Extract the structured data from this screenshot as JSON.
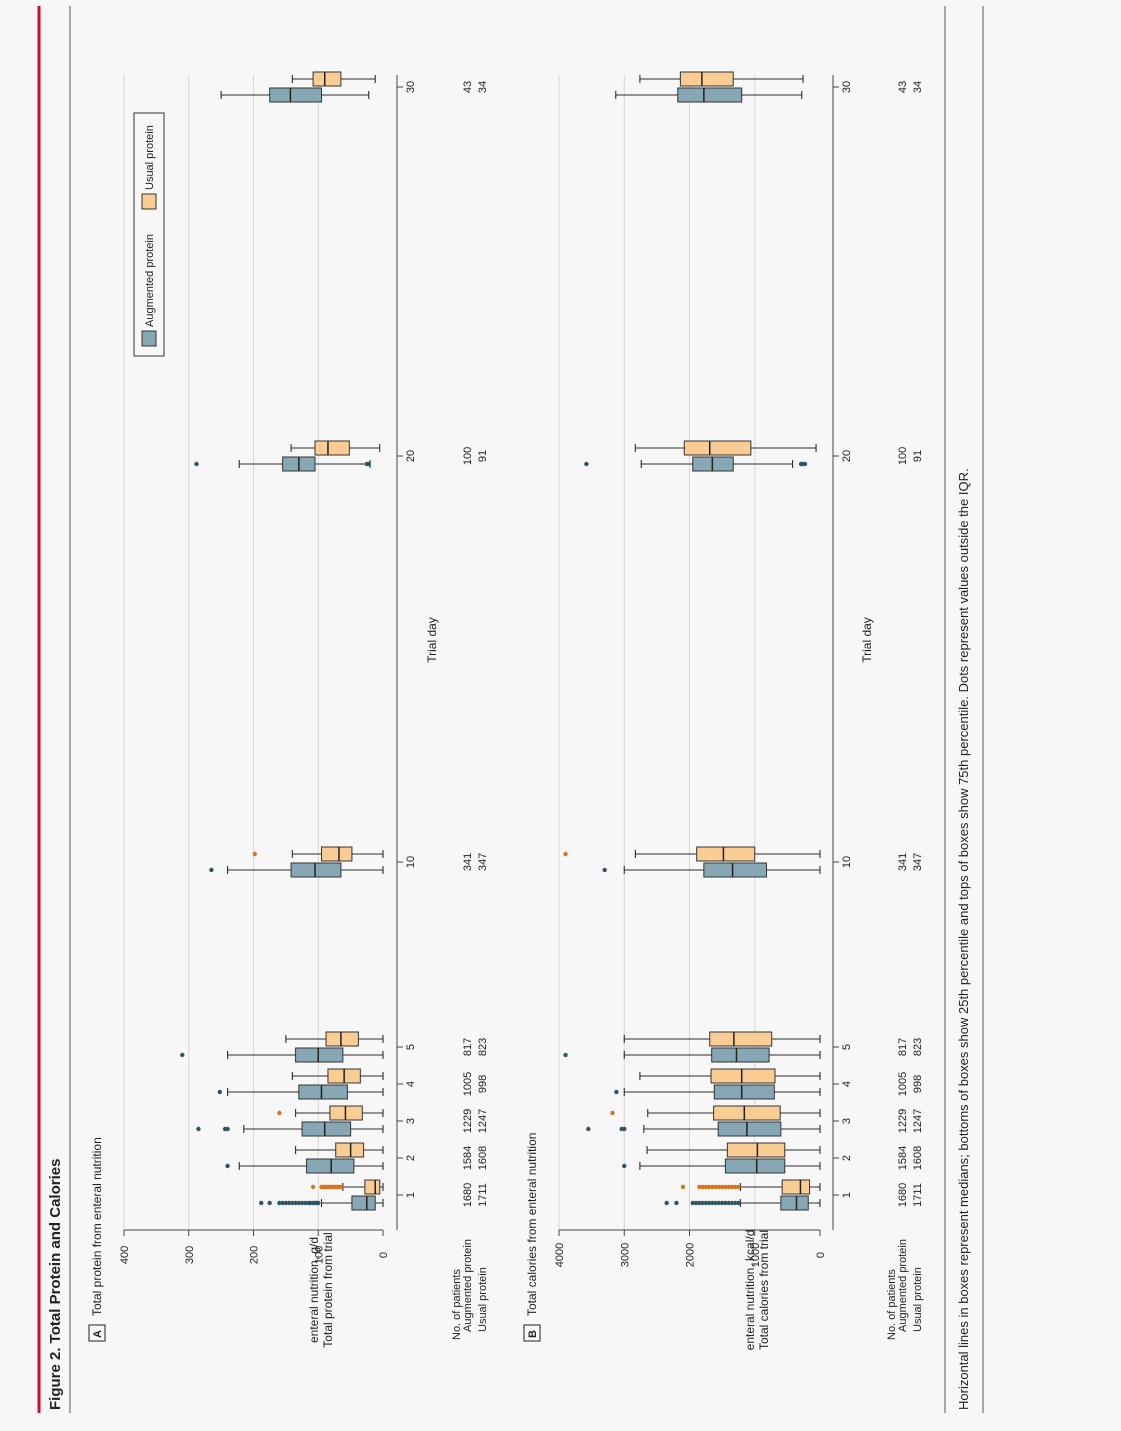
{
  "figure": {
    "title": "Figure 2. Total Protein and Calories",
    "caption": "Horizontal lines in boxes represent medians; bottoms of boxes show 25th percentile and tops of boxes show 75th percentile. Dots represent values outside the IQR.",
    "accent_color": "#c8102e"
  },
  "legend": {
    "items": [
      {
        "label": "Augmented protein",
        "color": "#87a7b5"
      },
      {
        "label": "Usual protein",
        "color": "#f8cc93"
      }
    ]
  },
  "patients": {
    "heading": "No. of patients",
    "rows": [
      {
        "label": "Augmented protein",
        "counts": [
          "1680",
          "1584",
          "1229",
          "1005",
          "817",
          "341",
          "100",
          "43"
        ]
      },
      {
        "label": "Usual protein",
        "counts": [
          "1711",
          "1608",
          "1247",
          "998",
          "823",
          "347",
          "91",
          "34"
        ]
      }
    ]
  },
  "chart_data": [
    {
      "panel": "A",
      "type": "box",
      "title": "Total protein from enteral nutrition",
      "ylabel": "Total protein from trial enteral nutrition, g/d",
      "xlabel": "Trial day",
      "ylim": [
        0,
        400
      ],
      "yticks": [
        0,
        100,
        200,
        300,
        400
      ],
      "days": [
        1,
        2,
        3,
        4,
        5,
        10,
        20,
        30
      ],
      "day_labels": [
        "1",
        "2",
        "3",
        "4",
        "5",
        "10",
        "20",
        "30"
      ],
      "series": [
        {
          "name": "Augmented protein",
          "boxes": [
            {
              "min": 0,
              "q1": 12,
              "median": 25,
              "q3": 48,
              "max": 95,
              "outliers": [
                100,
                102,
                105,
                108,
                112,
                115,
                120,
                125,
                130,
                135,
                140,
                145,
                150,
                155,
                160,
                175,
                188
              ]
            },
            {
              "min": 0,
              "q1": 45,
              "median": 80,
              "q3": 118,
              "max": 222,
              "outliers": [
                240
              ]
            },
            {
              "min": 0,
              "q1": 50,
              "median": 90,
              "q3": 125,
              "max": 215,
              "outliers": [
                240,
                244,
                285
              ]
            },
            {
              "min": 0,
              "q1": 55,
              "median": 95,
              "q3": 130,
              "max": 240,
              "outliers": [
                252
              ]
            },
            {
              "min": 0,
              "q1": 62,
              "median": 100,
              "q3": 135,
              "max": 240,
              "outliers": [
                310
              ]
            },
            {
              "min": 0,
              "q1": 65,
              "median": 105,
              "q3": 142,
              "max": 240,
              "outliers": [
                265
              ]
            },
            {
              "min": 20,
              "q1": 105,
              "median": 130,
              "q3": 155,
              "max": 222,
              "outliers": [
                22,
                25,
                288
              ]
            },
            {
              "min": 22,
              "q1": 95,
              "median": 143,
              "q3": 175,
              "max": 250,
              "outliers": []
            }
          ]
        },
        {
          "name": "Usual protein",
          "boxes": [
            {
              "min": 0,
              "q1": 5,
              "median": 12,
              "q3": 28,
              "max": 62,
              "outliers": [
                65,
                68,
                70,
                72,
                75,
                78,
                80,
                82,
                85,
                88,
                90,
                92,
                95,
                108
              ]
            },
            {
              "min": 0,
              "q1": 30,
              "median": 50,
              "q3": 73,
              "max": 135,
              "outliers": []
            },
            {
              "min": 0,
              "q1": 32,
              "median": 58,
              "q3": 82,
              "max": 135,
              "outliers": [
                160
              ]
            },
            {
              "min": 0,
              "q1": 35,
              "median": 60,
              "q3": 85,
              "max": 140,
              "outliers": []
            },
            {
              "min": 0,
              "q1": 38,
              "median": 65,
              "q3": 88,
              "max": 150,
              "outliers": []
            },
            {
              "min": 0,
              "q1": 48,
              "median": 68,
              "q3": 95,
              "max": 140,
              "outliers": [
                198
              ]
            },
            {
              "min": 5,
              "q1": 52,
              "median": 85,
              "q3": 105,
              "max": 142,
              "outliers": []
            },
            {
              "min": 12,
              "q1": 65,
              "median": 90,
              "q3": 108,
              "max": 140,
              "outliers": []
            }
          ]
        }
      ]
    },
    {
      "panel": "B",
      "type": "box",
      "title": "Total calories from enteral nutrition",
      "ylabel": "Total calories from trial enteral nutrition, kcal/d",
      "xlabel": "Trial day",
      "ylim": [
        0,
        4000
      ],
      "yticks": [
        0,
        1000,
        2000,
        3000,
        4000
      ],
      "days": [
        1,
        2,
        3,
        4,
        5,
        10,
        20,
        30
      ],
      "day_labels": [
        "1",
        "2",
        "3",
        "4",
        "5",
        "10",
        "20",
        "30"
      ],
      "series": [
        {
          "name": "Augmented protein",
          "boxes": [
            {
              "min": 0,
              "q1": 180,
              "median": 360,
              "q3": 600,
              "max": 1220,
              "outliers": [
                1250,
                1300,
                1350,
                1400,
                1450,
                1500,
                1550,
                1600,
                1650,
                1700,
                1750,
                1800,
                1850,
                1900,
                1950,
                2200,
                2350
              ]
            },
            {
              "min": 0,
              "q1": 540,
              "median": 970,
              "q3": 1450,
              "max": 2760,
              "outliers": [
                3000
              ]
            },
            {
              "min": 0,
              "q1": 600,
              "median": 1120,
              "q3": 1560,
              "max": 2700,
              "outliers": [
                3000,
                3040,
                3550
              ]
            },
            {
              "min": 0,
              "q1": 700,
              "median": 1200,
              "q3": 1620,
              "max": 3000,
              "outliers": [
                3120
              ]
            },
            {
              "min": 0,
              "q1": 780,
              "median": 1280,
              "q3": 1660,
              "max": 3000,
              "outliers": [
                3900
              ]
            },
            {
              "min": 0,
              "q1": 820,
              "median": 1340,
              "q3": 1780,
              "max": 3000,
              "outliers": [
                3300
              ]
            },
            {
              "min": 420,
              "q1": 1330,
              "median": 1650,
              "q3": 1950,
              "max": 2740,
              "outliers": [
                230,
                260,
                290,
                3580
              ]
            },
            {
              "min": 280,
              "q1": 1200,
              "median": 1780,
              "q3": 2180,
              "max": 3130,
              "outliers": []
            }
          ]
        },
        {
          "name": "Usual protein",
          "boxes": [
            {
              "min": 0,
              "q1": 160,
              "median": 300,
              "q3": 580,
              "max": 1220,
              "outliers": [
                1250,
                1300,
                1350,
                1400,
                1450,
                1500,
                1550,
                1600,
                1650,
                1700,
                1750,
                1800,
                1850,
                2100
              ]
            },
            {
              "min": 0,
              "q1": 540,
              "median": 960,
              "q3": 1420,
              "max": 2650,
              "outliers": []
            },
            {
              "min": 0,
              "q1": 610,
              "median": 1160,
              "q3": 1630,
              "max": 2640,
              "outliers": [
                3180
              ]
            },
            {
              "min": 0,
              "q1": 690,
              "median": 1200,
              "q3": 1670,
              "max": 2760,
              "outliers": []
            },
            {
              "min": 0,
              "q1": 740,
              "median": 1320,
              "q3": 1690,
              "max": 3000,
              "outliers": []
            },
            {
              "min": 0,
              "q1": 1000,
              "median": 1480,
              "q3": 1890,
              "max": 2830,
              "outliers": [
                3900
              ]
            },
            {
              "min": 60,
              "q1": 1060,
              "median": 1690,
              "q3": 2080,
              "max": 2830,
              "outliers": []
            },
            {
              "min": 260,
              "q1": 1330,
              "median": 1810,
              "q3": 2140,
              "max": 2760,
              "outliers": []
            }
          ]
        }
      ]
    }
  ]
}
